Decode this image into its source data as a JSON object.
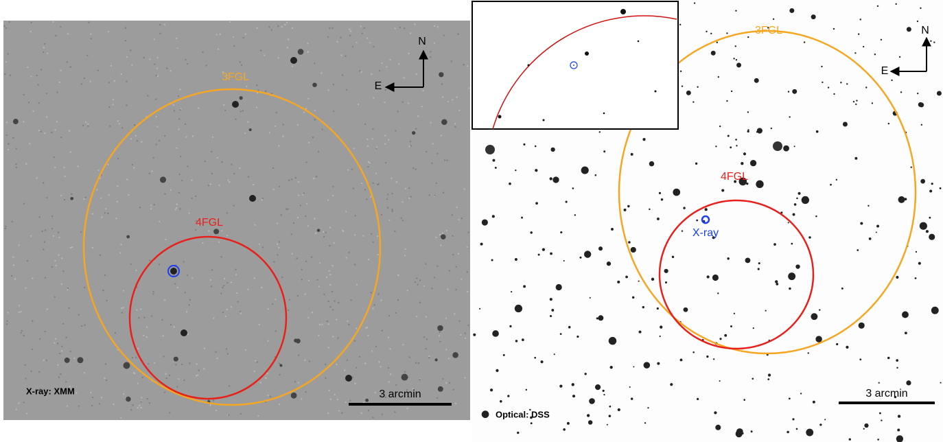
{
  "left_panel": {
    "outer_region": "3FGL",
    "inner_region": "4FGL",
    "north": "N",
    "east": "E",
    "caption": "X-ray: XMM",
    "scale": "3 arcmin"
  },
  "right_panel": {
    "outer_region": "3FGL",
    "inner_region": "4FGL",
    "source": "X-ray",
    "north": "N",
    "east": "E",
    "caption": "Optical: DSS",
    "scale": "3 arcmin"
  }
}
